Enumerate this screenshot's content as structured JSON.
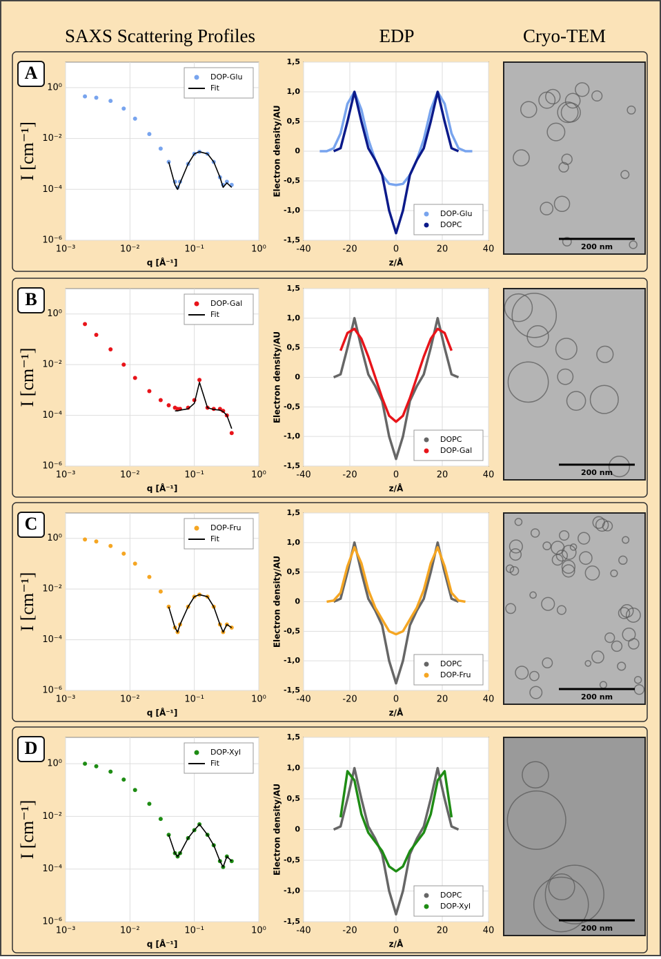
{
  "column_headers": [
    "SAXS Scattering Profiles",
    "EDP",
    "Cryo-TEM"
  ],
  "panels": [
    {
      "label": "A",
      "scale_bar": "200 nm"
    },
    {
      "label": "B",
      "scale_bar": "200 nm"
    },
    {
      "label": "C",
      "scale_bar": "200 nm"
    },
    {
      "label": "D",
      "scale_bar": "200 nm"
    }
  ],
  "chart_data": [
    {
      "type": "scatter",
      "xscale": "log",
      "yscale": "log",
      "xlabel": "q [Å⁻¹]",
      "ylabel": "I [cm⁻¹]",
      "legend": "top-right",
      "grid": true,
      "xlim": [
        0.001,
        1
      ],
      "ylim": [
        1e-06,
        10
      ],
      "xticks": [
        {
          "value": 0.001,
          "label": "10⁻³"
        },
        {
          "value": 0.01,
          "label": "10⁻²"
        },
        {
          "value": 0.1,
          "label": "10⁻¹"
        },
        {
          "value": 1,
          "label": "10⁰"
        }
      ],
      "yticks": [
        {
          "value": 1e-06,
          "label": "10⁻⁶"
        },
        {
          "value": 0.0001,
          "label": "10⁻⁴"
        },
        {
          "value": 0.01,
          "label": "10⁻²"
        },
        {
          "value": 1,
          "label": "10⁰"
        }
      ],
      "x": [
        0.002,
        0.003,
        0.005,
        0.008,
        0.012,
        0.02,
        0.03,
        0.04,
        0.05,
        0.055,
        0.06,
        0.08,
        0.1,
        0.12,
        0.16,
        0.2,
        0.25,
        0.28,
        0.32,
        0.38
      ],
      "series": [
        {
          "name": "DOP-Glu",
          "color": "#78a4ee",
          "mode": "markers",
          "values": [
            0.45,
            0.4,
            0.3,
            0.15,
            0.06,
            0.015,
            0.004,
            0.0012,
            0.0002,
            0.00012,
            0.0002,
            0.001,
            0.0025,
            0.003,
            0.0025,
            0.0012,
            0.0003,
            0.00015,
            0.0002,
            0.00015
          ]
        },
        {
          "name": "Fit",
          "color": "#000000",
          "mode": "line",
          "values": [
            null,
            null,
            null,
            null,
            null,
            null,
            null,
            0.0012,
            0.00015,
            0.0001,
            0.00018,
            0.001,
            0.0025,
            0.003,
            0.0025,
            0.0012,
            0.0003,
            0.00012,
            0.00018,
            0.00012
          ]
        }
      ]
    },
    {
      "type": "line",
      "xlabel": "z/Å",
      "ylabel": "Electron density/AU",
      "legend": "bottom-right",
      "grid": true,
      "xlim": [
        -40,
        40
      ],
      "ylim": [
        -1.5,
        1.5
      ],
      "xticks": [
        -40,
        -20,
        0,
        20,
        40
      ],
      "yticks": [
        {
          "value": 1.5,
          "label": "1,5"
        },
        {
          "value": 1,
          "label": "1,0"
        },
        {
          "value": 0.5,
          "label": "0,5"
        },
        0,
        {
          "value": -0.5,
          "label": "-0,5"
        },
        {
          "value": -1,
          "label": "-1,0"
        },
        {
          "value": -1.5,
          "label": "-1,5"
        }
      ],
      "x": [
        -33,
        -30,
        -27,
        -24,
        -21,
        -18,
        -15,
        -12,
        -9,
        -6,
        -3,
        0,
        3,
        6,
        9,
        12,
        15,
        18,
        21,
        24,
        27,
        30,
        33
      ],
      "series": [
        {
          "name": "DOP-Glu",
          "color": "#78a4ee",
          "values": [
            0,
            0,
            0.05,
            0.3,
            0.8,
            1,
            0.7,
            0.2,
            -0.15,
            -0.4,
            -0.55,
            -0.57,
            -0.55,
            -0.4,
            -0.15,
            0.2,
            0.7,
            1,
            0.8,
            0.3,
            0.05,
            0,
            0
          ]
        },
        {
          "name": "DOPC",
          "color": "#0b1a8a",
          "values": [
            null,
            null,
            0,
            0.05,
            0.5,
            1,
            0.5,
            0.05,
            -0.15,
            -0.4,
            -1,
            -1.38,
            -1,
            -0.4,
            -0.15,
            0.05,
            0.5,
            1,
            0.5,
            0.05,
            0,
            null,
            null
          ]
        }
      ]
    },
    {
      "type": "scatter",
      "xscale": "log",
      "yscale": "log",
      "xlabel": "q [Å⁻¹]",
      "ylabel": "I [cm⁻¹]",
      "legend": "top-right",
      "grid": true,
      "xlim": [
        0.001,
        1
      ],
      "ylim": [
        1e-06,
        10
      ],
      "xticks": [
        {
          "value": 0.001,
          "label": "10⁻³"
        },
        {
          "value": 0.01,
          "label": "10⁻²"
        },
        {
          "value": 0.1,
          "label": "10⁻¹"
        },
        {
          "value": 1,
          "label": "10⁰"
        }
      ],
      "yticks": [
        {
          "value": 1e-06,
          "label": "10⁻⁶"
        },
        {
          "value": 0.0001,
          "label": "10⁻⁴"
        },
        {
          "value": 0.01,
          "label": "10⁻²"
        },
        {
          "value": 1,
          "label": "10⁰"
        }
      ],
      "x": [
        0.002,
        0.003,
        0.005,
        0.008,
        0.012,
        0.02,
        0.03,
        0.04,
        0.05,
        0.055,
        0.06,
        0.08,
        0.1,
        0.12,
        0.16,
        0.2,
        0.25,
        0.28,
        0.32,
        0.38
      ],
      "series": [
        {
          "name": "DOP-Gal",
          "color": "#e8141a",
          "mode": "markers",
          "values": [
            0.4,
            0.15,
            0.04,
            0.01,
            0.003,
            0.0009,
            0.0004,
            0.00025,
            0.0002,
            0.00018,
            0.00018,
            0.0002,
            0.0004,
            0.0025,
            0.0002,
            0.00018,
            0.00018,
            0.00015,
            0.0001,
            2e-05
          ]
        },
        {
          "name": "Fit",
          "color": "#000000",
          "mode": "line",
          "values": [
            null,
            null,
            null,
            null,
            null,
            null,
            null,
            null,
            0.00015,
            0.00015,
            0.00016,
            0.00018,
            0.0003,
            0.002,
            0.0002,
            0.00017,
            0.00016,
            0.00014,
            0.0001,
            3e-05
          ]
        }
      ]
    },
    {
      "type": "line",
      "xlabel": "z/Å",
      "ylabel": "Electron density/AU",
      "legend": "bottom-right",
      "grid": true,
      "xlim": [
        -40,
        40
      ],
      "ylim": [
        -1.5,
        1.5
      ],
      "xticks": [
        -40,
        -20,
        0,
        20,
        40
      ],
      "yticks": [
        {
          "value": 1.5,
          "label": "1,5"
        },
        {
          "value": 1,
          "label": "1,0"
        },
        {
          "value": 0.5,
          "label": "0,5"
        },
        0,
        {
          "value": -0.5,
          "label": "-0,5"
        },
        {
          "value": -1,
          "label": "-1,0"
        },
        {
          "value": -1.5,
          "label": "-1,5"
        }
      ],
      "x": [
        -33,
        -30,
        -27,
        -24,
        -21,
        -18,
        -15,
        -12,
        -9,
        -6,
        -3,
        0,
        3,
        6,
        9,
        12,
        15,
        18,
        21,
        24,
        27,
        30,
        33
      ],
      "series": [
        {
          "name": "DOPC",
          "color": "#666666",
          "values": [
            null,
            null,
            0,
            0.05,
            0.5,
            1,
            0.5,
            0.05,
            -0.15,
            -0.4,
            -1,
            -1.38,
            -1,
            -0.4,
            -0.15,
            0.05,
            0.5,
            1,
            0.5,
            0.05,
            0,
            null,
            null
          ]
        },
        {
          "name": "DOP-Gal",
          "color": "#e8141a",
          "values": [
            null,
            null,
            null,
            0.45,
            0.75,
            0.82,
            0.65,
            0.35,
            0,
            -0.35,
            -0.65,
            -0.75,
            -0.65,
            -0.35,
            0,
            0.35,
            0.65,
            0.82,
            0.75,
            0.45,
            null,
            null,
            null
          ]
        }
      ]
    },
    {
      "type": "scatter",
      "xscale": "log",
      "yscale": "log",
      "xlabel": "q [Å⁻¹]",
      "ylabel": "I [cm⁻¹]",
      "legend": "top-right",
      "grid": true,
      "xlim": [
        0.001,
        1
      ],
      "ylim": [
        1e-06,
        10
      ],
      "xticks": [
        {
          "value": 0.001,
          "label": "10⁻³"
        },
        {
          "value": 0.01,
          "label": "10⁻²"
        },
        {
          "value": 0.1,
          "label": "10⁻¹"
        },
        {
          "value": 1,
          "label": "10⁰"
        }
      ],
      "yticks": [
        {
          "value": 1e-06,
          "label": "10⁻⁶"
        },
        {
          "value": 0.0001,
          "label": "10⁻⁴"
        },
        {
          "value": 0.01,
          "label": "10⁻²"
        },
        {
          "value": 1,
          "label": "10⁰"
        }
      ],
      "x": [
        0.002,
        0.003,
        0.005,
        0.008,
        0.012,
        0.02,
        0.03,
        0.04,
        0.05,
        0.055,
        0.06,
        0.08,
        0.1,
        0.12,
        0.16,
        0.2,
        0.25,
        0.28,
        0.32,
        0.38
      ],
      "series": [
        {
          "name": "DOP-Fru",
          "color": "#f5a623",
          "mode": "markers",
          "values": [
            0.9,
            0.75,
            0.5,
            0.25,
            0.1,
            0.03,
            0.008,
            0.002,
            0.0003,
            0.0002,
            0.0004,
            0.002,
            0.005,
            0.006,
            0.005,
            0.002,
            0.0004,
            0.0002,
            0.0004,
            0.0003
          ]
        },
        {
          "name": "Fit",
          "color": "#000000",
          "mode": "line",
          "values": [
            null,
            null,
            null,
            null,
            null,
            null,
            null,
            0.002,
            0.0003,
            0.0002,
            0.0004,
            0.002,
            0.005,
            0.006,
            0.005,
            0.002,
            0.0004,
            0.0002,
            0.0004,
            0.0003
          ]
        }
      ]
    },
    {
      "type": "line",
      "xlabel": "z/Å",
      "ylabel": "Electron density/AU",
      "legend": "bottom-right",
      "grid": true,
      "xlim": [
        -40,
        40
      ],
      "ylim": [
        -1.5,
        1.5
      ],
      "xticks": [
        -40,
        -20,
        0,
        20,
        40
      ],
      "yticks": [
        {
          "value": 1.5,
          "label": "1,5"
        },
        {
          "value": 1,
          "label": "1,0"
        },
        {
          "value": 0.5,
          "label": "0,5"
        },
        0,
        {
          "value": -0.5,
          "label": "-0,5"
        },
        {
          "value": -1,
          "label": "-1,0"
        },
        {
          "value": -1.5,
          "label": "-1,5"
        }
      ],
      "x": [
        -33,
        -30,
        -27,
        -24,
        -21,
        -18,
        -15,
        -12,
        -9,
        -6,
        -3,
        0,
        3,
        6,
        9,
        12,
        15,
        18,
        21,
        24,
        27,
        30,
        33
      ],
      "series": [
        {
          "name": "DOPC",
          "color": "#666666",
          "values": [
            null,
            null,
            0,
            0.05,
            0.5,
            1,
            0.5,
            0.05,
            -0.15,
            -0.4,
            -1,
            -1.38,
            -1,
            -0.4,
            -0.15,
            0.05,
            0.5,
            1,
            0.5,
            0.05,
            0,
            null,
            null
          ]
        },
        {
          "name": "DOP-Fru",
          "color": "#f5a623",
          "values": [
            null,
            0,
            0.02,
            0.15,
            0.6,
            0.92,
            0.65,
            0.2,
            -0.1,
            -0.3,
            -0.5,
            -0.55,
            -0.5,
            -0.3,
            -0.1,
            0.2,
            0.65,
            0.92,
            0.6,
            0.15,
            0.02,
            0,
            null
          ]
        }
      ]
    },
    {
      "type": "scatter",
      "xscale": "log",
      "yscale": "log",
      "xlabel": "q [Å⁻¹]",
      "ylabel": "I [cm⁻¹]",
      "legend": "top-right",
      "grid": true,
      "xlim": [
        0.001,
        1
      ],
      "ylim": [
        1e-06,
        10
      ],
      "xticks": [
        {
          "value": 0.001,
          "label": "10⁻³"
        },
        {
          "value": 0.01,
          "label": "10⁻²"
        },
        {
          "value": 0.1,
          "label": "10⁻¹"
        },
        {
          "value": 1,
          "label": "10⁰"
        }
      ],
      "yticks": [
        {
          "value": 1e-06,
          "label": "10⁻⁶"
        },
        {
          "value": 0.0001,
          "label": "10⁻⁴"
        },
        {
          "value": 0.01,
          "label": "10⁻²"
        },
        {
          "value": 1,
          "label": "10⁰"
        }
      ],
      "x": [
        0.002,
        0.003,
        0.005,
        0.008,
        0.012,
        0.02,
        0.03,
        0.04,
        0.05,
        0.055,
        0.06,
        0.08,
        0.1,
        0.12,
        0.16,
        0.2,
        0.25,
        0.28,
        0.32,
        0.38
      ],
      "series": [
        {
          "name": "DOP-Xyl",
          "color": "#1e8c14",
          "mode": "markers",
          "values": [
            1,
            0.8,
            0.5,
            0.25,
            0.1,
            0.03,
            0.008,
            0.002,
            0.0004,
            0.0003,
            0.0004,
            0.0015,
            0.003,
            0.005,
            0.002,
            0.0008,
            0.0002,
            0.00012,
            0.0003,
            0.0002
          ]
        },
        {
          "name": "Fit",
          "color": "#000000",
          "mode": "line",
          "values": [
            null,
            null,
            null,
            null,
            null,
            null,
            null,
            0.002,
            0.0004,
            0.0003,
            0.0004,
            0.0015,
            0.003,
            0.005,
            0.002,
            0.0008,
            0.0002,
            0.00012,
            0.0003,
            0.0002
          ]
        }
      ]
    },
    {
      "type": "line",
      "xlabel": "z/Å",
      "ylabel": "Electron density/AU",
      "legend": "bottom-right",
      "grid": true,
      "xlim": [
        -40,
        40
      ],
      "ylim": [
        -1.5,
        1.5
      ],
      "xticks": [
        -40,
        -20,
        0,
        20,
        40
      ],
      "yticks": [
        {
          "value": 1.5,
          "label": "1,5"
        },
        {
          "value": 1,
          "label": "1,0"
        },
        {
          "value": 0.5,
          "label": "0,5"
        },
        0,
        {
          "value": -0.5,
          "label": "-0,5"
        },
        {
          "value": -1,
          "label": "-1,0"
        },
        {
          "value": -1.5,
          "label": "-1,5"
        }
      ],
      "x": [
        -33,
        -30,
        -27,
        -24,
        -21,
        -18,
        -15,
        -12,
        -9,
        -6,
        -3,
        0,
        3,
        6,
        9,
        12,
        15,
        18,
        21,
        24,
        27,
        30,
        33
      ],
      "series": [
        {
          "name": "DOPC",
          "color": "#666666",
          "values": [
            null,
            null,
            0,
            0.05,
            0.5,
            1,
            0.5,
            0.05,
            -0.15,
            -0.4,
            -1,
            -1.38,
            -1,
            -0.4,
            -0.15,
            0.05,
            0.5,
            1,
            0.5,
            0.05,
            0,
            null,
            null
          ]
        },
        {
          "name": "DOP-Xyl",
          "color": "#1e8c14",
          "values": [
            null,
            null,
            null,
            0.2,
            0.95,
            0.8,
            0.25,
            -0.05,
            -0.2,
            -0.35,
            -0.6,
            -0.68,
            -0.6,
            -0.35,
            -0.2,
            -0.05,
            0.25,
            0.8,
            0.95,
            0.2,
            null,
            null,
            null
          ]
        }
      ]
    }
  ]
}
